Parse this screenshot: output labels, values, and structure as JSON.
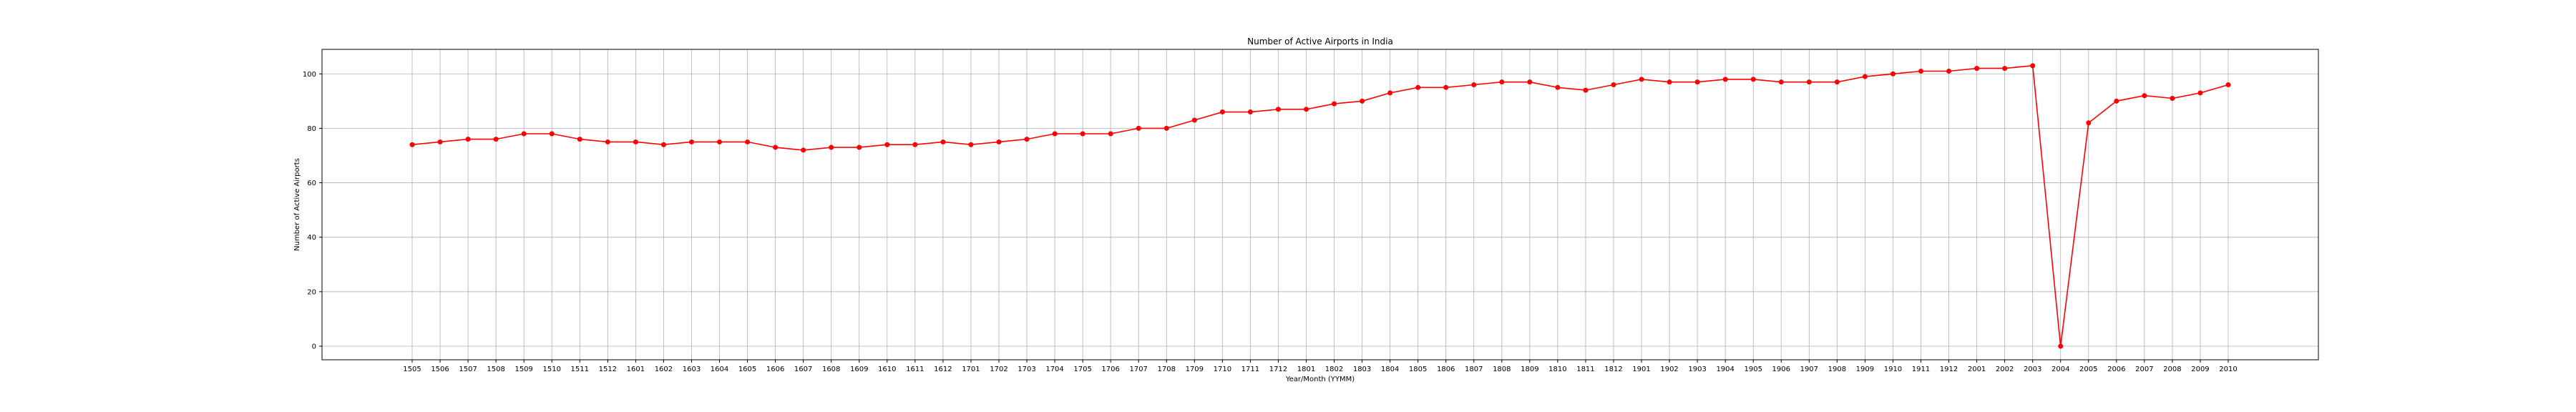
{
  "chart_data": {
    "type": "line",
    "title": "Number of Active Airports in India",
    "xlabel": "Year/Month (YYMM)",
    "ylabel": "Number of Active Airports",
    "ylim": [
      -5,
      109
    ],
    "y_ticks": [
      0,
      20,
      40,
      60,
      80,
      100
    ],
    "grid": true,
    "color": "#ff0000",
    "categories": [
      "1505",
      "1506",
      "1507",
      "1508",
      "1509",
      "1510",
      "1511",
      "1512",
      "1601",
      "1602",
      "1603",
      "1604",
      "1605",
      "1606",
      "1607",
      "1608",
      "1609",
      "1610",
      "1611",
      "1612",
      "1701",
      "1702",
      "1703",
      "1704",
      "1705",
      "1706",
      "1707",
      "1708",
      "1709",
      "1710",
      "1711",
      "1712",
      "1801",
      "1802",
      "1803",
      "1804",
      "1805",
      "1806",
      "1807",
      "1808",
      "1809",
      "1810",
      "1811",
      "1812",
      "1901",
      "1902",
      "1903",
      "1904",
      "1905",
      "1906",
      "1907",
      "1908",
      "1909",
      "1910",
      "1911",
      "1912",
      "2001",
      "2002",
      "2003",
      "2004",
      "2005",
      "2006",
      "2007",
      "2008",
      "2009",
      "2010"
    ],
    "series": [
      {
        "values": [
          74,
          75,
          76,
          76,
          78,
          78,
          76,
          75,
          75,
          74,
          75,
          75,
          75,
          73,
          72,
          73,
          73,
          74,
          74,
          75,
          74,
          75,
          76,
          78,
          78,
          78,
          80,
          80,
          83,
          86,
          86,
          87,
          87,
          89,
          90,
          93,
          95,
          95,
          96,
          97,
          97,
          95,
          94,
          96,
          98,
          97,
          97,
          98,
          98,
          97,
          97,
          97,
          99,
          100,
          101,
          101,
          102,
          102,
          103,
          0,
          82,
          90,
          92,
          91,
          93,
          96
        ]
      }
    ]
  }
}
